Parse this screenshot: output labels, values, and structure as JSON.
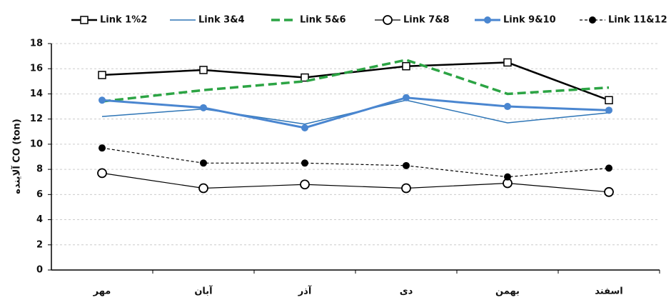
{
  "chart_data": {
    "type": "line",
    "y_label": "آلاینده CO (ton)",
    "categories": [
      "مهر",
      "آبان",
      "آذر",
      "دی",
      "بهمن",
      "اسفند"
    ],
    "ylim": [
      0,
      18
    ],
    "yticks": [
      0,
      2,
      4,
      6,
      8,
      10,
      12,
      14,
      16,
      18
    ],
    "grid": true,
    "series": [
      {
        "name": "Link 1%2",
        "color": "#000000",
        "marker": "square-open",
        "dash": "none",
        "width": 2.5,
        "values": [
          15.5,
          15.9,
          15.3,
          16.2,
          16.5,
          13.5
        ]
      },
      {
        "name": "Link 3&4",
        "color": "#2e75b6",
        "marker": "none",
        "dash": "none",
        "width": 1.5,
        "values": [
          12.2,
          12.8,
          11.6,
          13.5,
          11.7,
          12.5
        ]
      },
      {
        "name": "Link 5&6",
        "color": "#2ca444",
        "marker": "none",
        "dash": "12 6",
        "width": 3.5,
        "values": [
          13.4,
          14.3,
          15.0,
          16.7,
          14.0,
          14.5
        ]
      },
      {
        "name": "Link 7&8",
        "color": "#000000",
        "marker": "circle-open",
        "dash": "none",
        "width": 1.2,
        "values": [
          7.7,
          6.5,
          6.8,
          6.5,
          6.9,
          6.2
        ]
      },
      {
        "name": "Link 9&10",
        "color": "#4a86d0",
        "marker": "circle",
        "dash": "none",
        "width": 3,
        "values": [
          13.5,
          12.9,
          11.3,
          13.7,
          13.0,
          12.7
        ]
      },
      {
        "name": "Link 11&12",
        "color": "#000000",
        "marker": "circle",
        "dash": "4 3",
        "width": 1.2,
        "values": [
          9.7,
          8.5,
          8.5,
          8.3,
          7.4,
          8.1
        ]
      }
    ]
  }
}
